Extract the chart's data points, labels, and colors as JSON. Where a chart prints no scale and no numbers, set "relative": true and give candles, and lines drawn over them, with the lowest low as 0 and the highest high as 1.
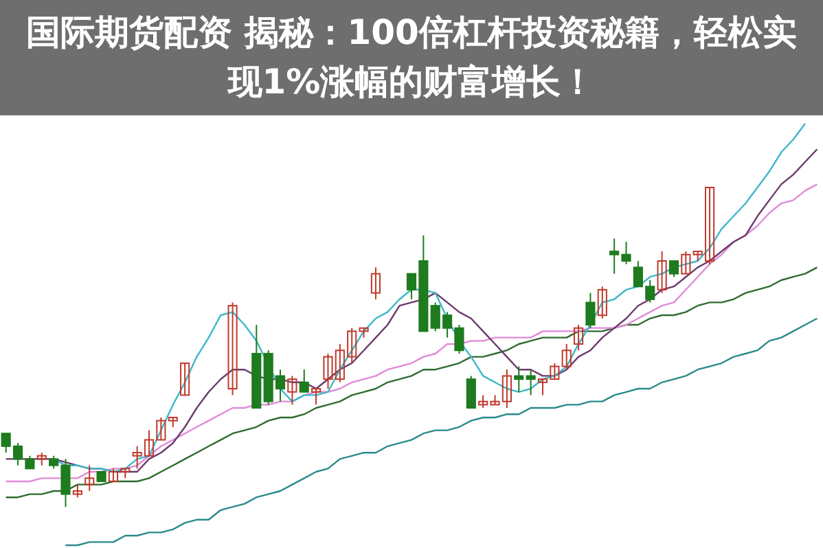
{
  "chart_data": {
    "type": "candlestick",
    "relative": true,
    "title": "国际期货配资 揭秘：100倍杠杆投资秘籍，轻松实现1%涨幅的财富增长！",
    "categories": [
      null,
      null,
      null,
      null,
      null,
      null,
      null,
      null,
      null,
      null,
      null,
      null,
      null,
      null,
      null,
      null,
      null,
      null,
      null,
      null,
      null,
      null,
      null,
      null,
      null,
      null,
      null,
      null,
      null,
      null,
      null,
      null,
      null,
      null,
      null,
      null,
      null,
      null,
      null,
      null,
      null,
      null,
      null,
      null,
      null,
      null,
      null,
      null,
      null,
      null,
      null,
      null,
      null,
      null,
      null,
      null,
      null,
      null,
      null,
      null,
      null,
      null,
      null,
      null,
      null,
      null,
      null,
      null,
      null
    ],
    "ohlc": [
      [
        0.23,
        0.23,
        0.17,
        0.19
      ],
      [
        0.19,
        0.2,
        0.13,
        0.15
      ],
      [
        0.15,
        0.16,
        0.12,
        0.12
      ],
      [
        0.15,
        0.17,
        0.13,
        0.16
      ],
      [
        0.15,
        0.16,
        0.12,
        0.13
      ],
      [
        0.13,
        0.15,
        0,
        0.04
      ],
      [
        0.04,
        0.07,
        0.03,
        0.05
      ],
      [
        0.07,
        0.13,
        0.05,
        0.09
      ],
      [
        0.11,
        0.11,
        0.08,
        0.08
      ],
      [
        0.08,
        0.12,
        0.08,
        0.11
      ],
      [
        0.11,
        0.12,
        0.09,
        0.12
      ],
      [
        0.16,
        0.19,
        0.12,
        0.17
      ],
      [
        0.16,
        0.24,
        0.16,
        0.21
      ],
      [
        0.21,
        0.28,
        0.21,
        0.27
      ],
      [
        0.27,
        0.28,
        0.25,
        0.28
      ],
      [
        0.35,
        0.45,
        0.35,
        0.45
      ],
      null,
      null,
      null,
      [
        0.37,
        0.64,
        0.35,
        0.63
      ],
      null,
      [
        0.48,
        0.57,
        0.31,
        0.31
      ],
      [
        0.48,
        0.49,
        0.32,
        0.33
      ],
      [
        0.41,
        0.43,
        0.33,
        0.37
      ],
      [
        0.36,
        0.41,
        0.32,
        0.4
      ],
      [
        0.39,
        0.43,
        0.36,
        0.36
      ],
      [
        0.36,
        0.37,
        0.32,
        0.37
      ],
      [
        0.4,
        0.48,
        0.37,
        0.47
      ],
      [
        0.4,
        0.51,
        0.39,
        0.49
      ],
      [
        0.47,
        0.56,
        0.45,
        0.55
      ],
      [
        0.55,
        0.56,
        0.53,
        0.56
      ],
      [
        0.67,
        0.75,
        0.65,
        0.73
      ],
      null,
      null,
      [
        0.73,
        0.73,
        0.65,
        0.68
      ],
      [
        0.77,
        0.85,
        0.55,
        0.55
      ],
      [
        0.63,
        0.64,
        0.55,
        0.56
      ],
      [
        0.6,
        0.61,
        0.53,
        0.56
      ],
      [
        0.56,
        0.57,
        0.48,
        0.49
      ],
      [
        0.4,
        0.41,
        0.31,
        0.31
      ],
      [
        0.32,
        0.35,
        0.31,
        0.33
      ],
      [
        0.32,
        0.35,
        0.32,
        0.33
      ],
      [
        0.33,
        0.43,
        0.31,
        0.41
      ],
      [
        0.41,
        0.44,
        0.36,
        0.4
      ],
      [
        0.41,
        0.43,
        0.35,
        0.4
      ],
      [
        0.39,
        0.4,
        0.35,
        0.4
      ],
      [
        0.4,
        0.45,
        0.4,
        0.44
      ],
      [
        0.44,
        0.51,
        0.43,
        0.49
      ],
      [
        0.51,
        0.57,
        0.49,
        0.56
      ],
      [
        0.64,
        0.67,
        0.56,
        0.57
      ],
      [
        0.6,
        0.69,
        0.59,
        0.68
      ],
      [
        0.8,
        0.84,
        0.73,
        0.79
      ],
      [
        0.79,
        0.83,
        0.76,
        0.77
      ],
      [
        0.75,
        0.77,
        0.69,
        0.69
      ],
      [
        0.69,
        0.71,
        0.64,
        0.65
      ],
      [
        0.68,
        0.8,
        0.67,
        0.77
      ],
      [
        0.77,
        0.77,
        0.72,
        0.73
      ],
      [
        0.73,
        0.8,
        0.73,
        0.79
      ],
      [
        0.79,
        0.8,
        0.77,
        0.8
      ],
      [
        0.77,
        1.0,
        0.76,
        1.0
      ],
      null,
      null,
      null,
      null,
      null,
      null,
      null,
      null,
      null
    ],
    "series": [
      {
        "type": "line",
        "color": "#3cb8c8",
        "values": [
          null,
          null,
          null,
          null,
          0.15,
          0.13,
          0.13,
          0.12,
          0.12,
          0.11,
          0.12,
          0.15,
          0.16,
          0.24,
          0.32,
          0.39,
          0.47,
          0.53,
          0.6,
          0.61,
          0.57,
          0.52,
          null,
          0.37,
          0.33,
          0.35,
          0.35,
          0.36,
          0.43,
          0.49,
          0.55,
          0.59,
          0.61,
          0.65,
          0.68,
          0.68,
          0.67,
          0.59,
          0.52,
          0.47,
          0.41,
          0.39,
          0.37,
          0.36,
          0.37,
          0.4,
          0.41,
          0.44,
          0.51,
          0.57,
          0.64,
          0.65,
          0.68,
          0.69,
          0.72,
          0.73,
          0.75,
          0.76,
          0.77,
          0.81,
          0.87,
          0.91,
          0.95,
          1.0,
          1.05,
          1.11,
          1.15,
          1.2,
          null
        ]
      },
      {
        "type": "line",
        "color": "#6b3a6b",
        "values": [
          0.15,
          0.15,
          0.15,
          0.15,
          0.15,
          null,
          0.13,
          0.12,
          0.12,
          0.11,
          0.11,
          0.11,
          0.15,
          0.17,
          0.2,
          0.25,
          0.31,
          0.36,
          0.4,
          0.43,
          0.43,
          0.41,
          0.4,
          0.4,
          0.39,
          0.39,
          0.37,
          0.4,
          0.43,
          0.45,
          0.49,
          0.53,
          0.57,
          0.63,
          0.64,
          0.65,
          0.67,
          0.64,
          0.61,
          0.59,
          0.55,
          0.51,
          0.47,
          0.43,
          0.43,
          0.41,
          0.41,
          0.43,
          0.47,
          0.49,
          0.53,
          0.56,
          0.59,
          0.63,
          0.65,
          0.68,
          0.69,
          0.72,
          0.75,
          0.77,
          0.8,
          0.83,
          0.85,
          0.91,
          0.96,
          1.01,
          1.04,
          1.08,
          1.12
        ]
      },
      {
        "type": "line",
        "color": "#e08ad8",
        "values": [
          0.08,
          0.08,
          0.08,
          0.09,
          0.09,
          0.09,
          0.09,
          0.11,
          0.11,
          0.12,
          0.12,
          0.13,
          0.16,
          0.19,
          0.21,
          0.23,
          0.25,
          0.27,
          0.29,
          0.31,
          0.31,
          0.32,
          0.32,
          0.33,
          0.33,
          0.35,
          0.36,
          0.36,
          0.37,
          0.39,
          0.4,
          0.41,
          0.43,
          0.44,
          0.45,
          0.47,
          0.48,
          0.51,
          0.51,
          0.52,
          0.52,
          0.53,
          0.53,
          0.53,
          0.53,
          0.55,
          0.55,
          0.55,
          0.55,
          0.56,
          0.56,
          0.56,
          0.57,
          0.59,
          0.61,
          0.63,
          0.64,
          0.68,
          0.72,
          0.76,
          0.79,
          0.83,
          0.85,
          0.88,
          0.92,
          0.95,
          0.96,
          0.99,
          1.01
        ]
      },
      {
        "type": "line",
        "color": "#2e6b2e",
        "values": [
          0.03,
          0.03,
          0.04,
          0.04,
          0.05,
          0.05,
          0.07,
          0.07,
          0.07,
          0.08,
          0.08,
          0.08,
          0.09,
          0.11,
          0.13,
          0.15,
          0.17,
          0.19,
          0.21,
          0.23,
          0.24,
          0.25,
          0.27,
          0.28,
          0.28,
          0.29,
          0.31,
          0.32,
          0.33,
          0.35,
          0.36,
          0.37,
          0.39,
          0.4,
          0.41,
          0.43,
          0.43,
          0.44,
          0.45,
          0.47,
          0.47,
          0.48,
          0.49,
          0.51,
          0.52,
          0.53,
          0.53,
          0.53,
          0.55,
          0.55,
          0.55,
          0.56,
          0.57,
          0.57,
          0.59,
          0.6,
          0.6,
          0.61,
          0.63,
          0.64,
          0.64,
          0.65,
          0.67,
          0.68,
          0.69,
          0.71,
          0.72,
          0.73,
          0.75
        ]
      },
      {
        "type": "line",
        "color": "#2a8a8a",
        "values": [
          null,
          null,
          null,
          null,
          null,
          -0.12,
          -0.12,
          -0.11,
          -0.11,
          -0.11,
          -0.09,
          -0.09,
          -0.08,
          -0.08,
          -0.07,
          -0.05,
          -0.04,
          -0.04,
          -0.01,
          0,
          0.01,
          0.03,
          0.04,
          0.05,
          0.07,
          0.09,
          0.11,
          0.12,
          0.15,
          0.16,
          0.17,
          0.17,
          0.19,
          0.2,
          0.21,
          0.23,
          0.24,
          0.24,
          0.25,
          0.27,
          0.28,
          0.28,
          0.29,
          0.29,
          0.31,
          0.31,
          0.31,
          0.32,
          0.32,
          0.33,
          0.33,
          0.35,
          0.36,
          0.37,
          0.37,
          0.39,
          0.4,
          0.41,
          0.43,
          0.44,
          0.45,
          0.47,
          0.48,
          0.49,
          0.52,
          0.53,
          0.55,
          0.57,
          0.59
        ]
      }
    ]
  }
}
